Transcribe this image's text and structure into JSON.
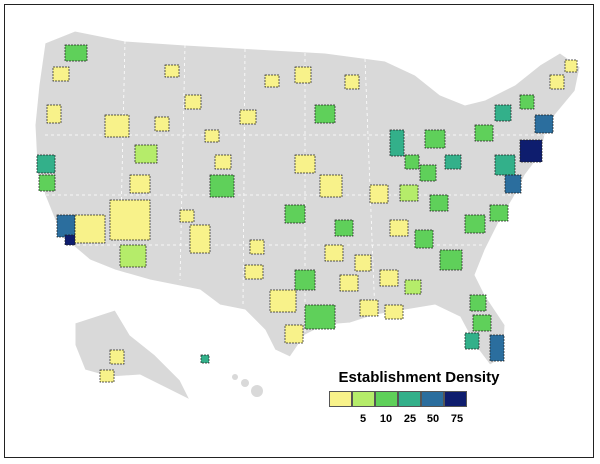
{
  "legend": {
    "title": "Establishment Density",
    "ticks": [
      "5",
      "10",
      "25",
      "50",
      "75"
    ],
    "colors": [
      "#f8f28a",
      "#b5ec6a",
      "#5fd05a",
      "#33b08a",
      "#2b6e9e",
      "#0e1d6e"
    ]
  },
  "map": {
    "land_color": "#d9d9d9",
    "boundary_color": "#ffffff",
    "region_outline": "#222222"
  }
}
